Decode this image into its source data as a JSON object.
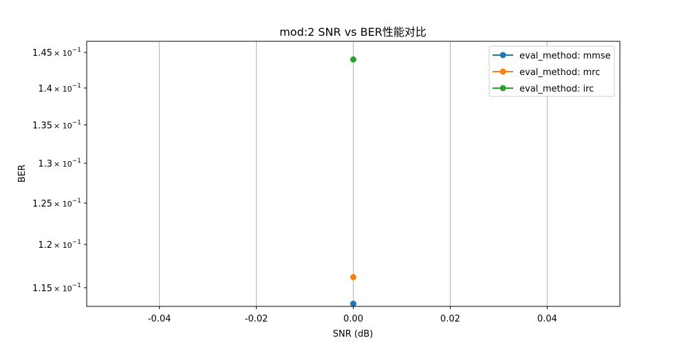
{
  "chart_data": {
    "type": "scatter",
    "title": "mod:2 SNR vs BER性能对比",
    "xlabel": "SNR (dB)",
    "ylabel": "BER",
    "xlim": [
      -0.055,
      0.055
    ],
    "ylim": [
      0.1129,
      0.1466
    ],
    "yscale": "log",
    "grid": "x-only",
    "legend_location": "top-right",
    "x_ticks": [
      {
        "value": -0.04,
        "label": "-0.04"
      },
      {
        "value": -0.02,
        "label": "-0.02"
      },
      {
        "value": 0.0,
        "label": "0.00"
      },
      {
        "value": 0.02,
        "label": "0.02"
      },
      {
        "value": 0.04,
        "label": "0.04"
      }
    ],
    "y_ticks": [
      {
        "value": 0.145,
        "mantissa": "1.45",
        "exp": "−1"
      },
      {
        "value": 0.14,
        "mantissa": "1.4",
        "exp": "−1"
      },
      {
        "value": 0.135,
        "mantissa": "1.35",
        "exp": "−1"
      },
      {
        "value": 0.13,
        "mantissa": "1.3",
        "exp": "−1"
      },
      {
        "value": 0.125,
        "mantissa": "1.25",
        "exp": "−1"
      },
      {
        "value": 0.12,
        "mantissa": "1.2",
        "exp": "−1"
      },
      {
        "value": 0.115,
        "mantissa": "1.15",
        "exp": "−1"
      }
    ],
    "y_tick_times": "× 10",
    "series": [
      {
        "name": "eval_method: mmse",
        "color": "#1f77b4",
        "x": [
          0.0
        ],
        "y": [
          0.1132
        ]
      },
      {
        "name": "eval_method: mrc",
        "color": "#ff7f0e",
        "x": [
          0.0
        ],
        "y": [
          0.1162
        ]
      },
      {
        "name": "eval_method: irc",
        "color": "#2ca02c",
        "x": [
          0.0
        ],
        "y": [
          0.144
        ]
      }
    ]
  }
}
